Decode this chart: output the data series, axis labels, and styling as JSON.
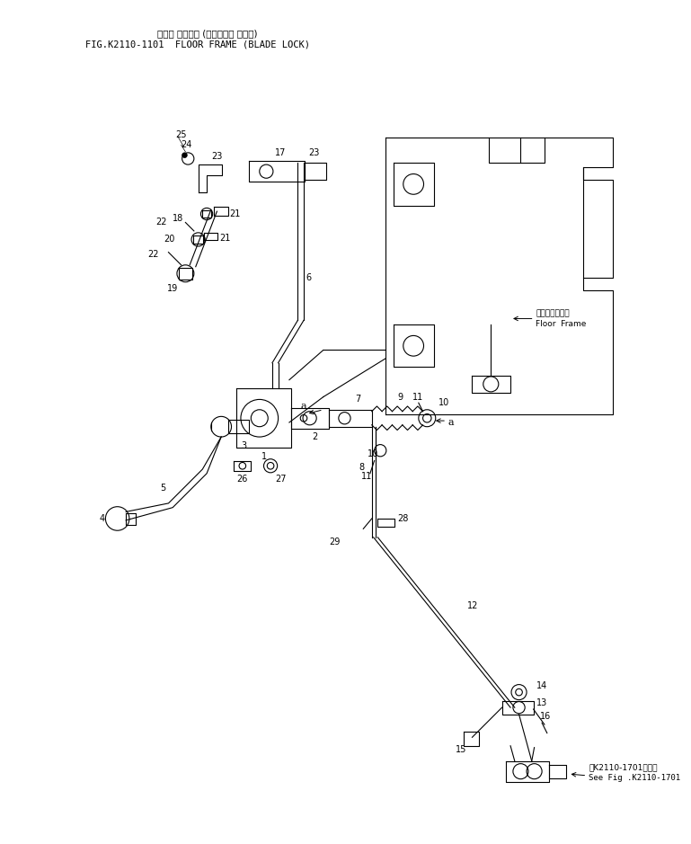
{
  "title_jp": "フロア フレーム (ブレード・ ロック)",
  "title_en": "FIG.K2110-1101  FLOOR FRAME (BLADE LOCK)",
  "floor_frame_jp": "フロアフレーム",
  "floor_frame_en": "Floor  Frame",
  "see_fig_jp": "第K2110-1701図参照",
  "see_fig_en": "See Fig .K2110-1701",
  "bg_color": "#ffffff",
  "line_color": "#000000",
  "fig_width": 7.69,
  "fig_height": 9.39,
  "dpi": 100
}
